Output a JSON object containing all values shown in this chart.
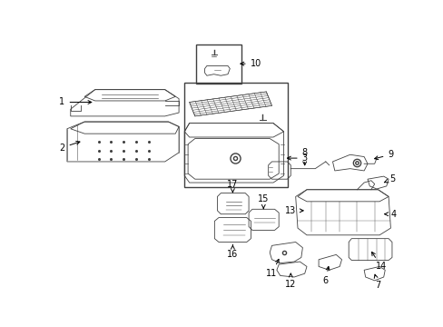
{
  "bg_color": "#ffffff",
  "line_color": "#404040",
  "label_color": "#000000",
  "fig_w": 4.89,
  "fig_h": 3.6,
  "dpi": 100
}
